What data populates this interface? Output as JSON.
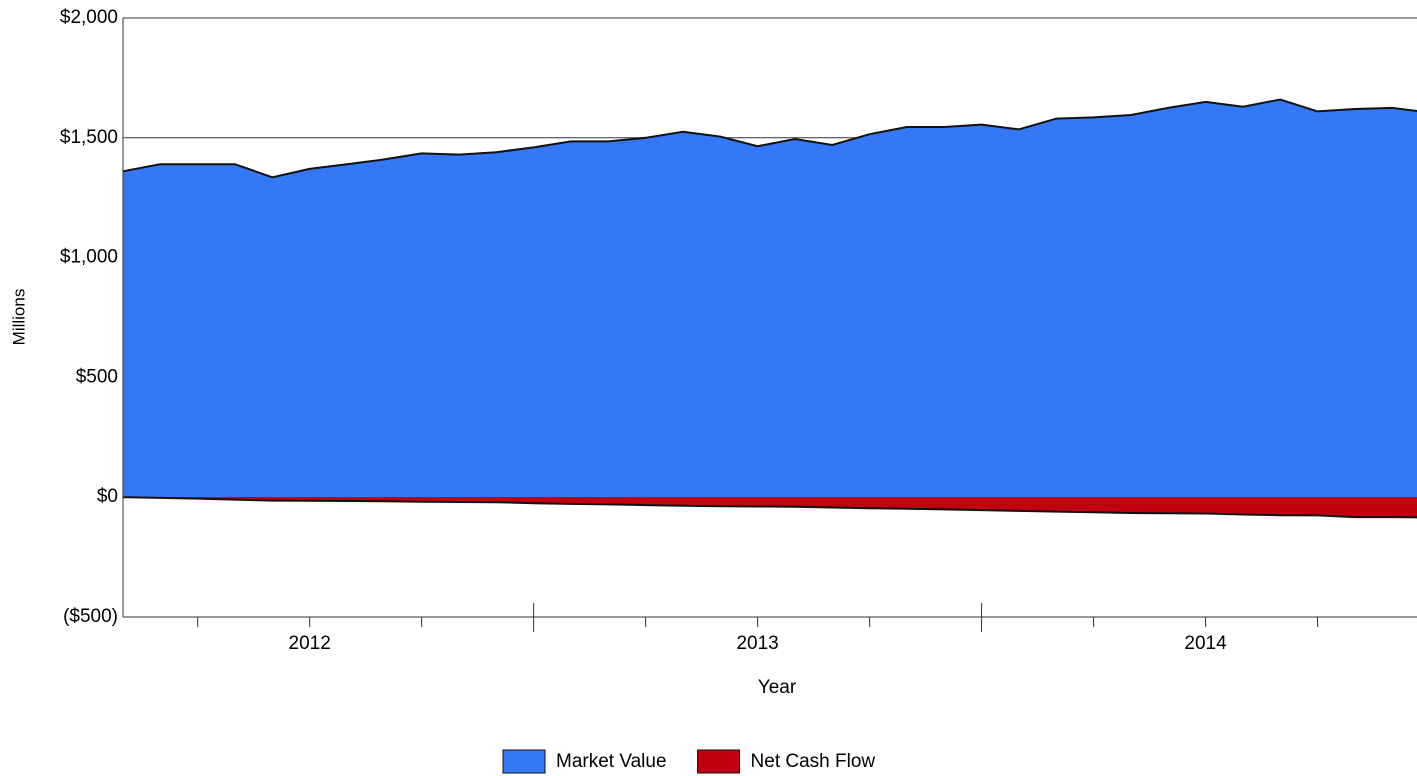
{
  "chart_data": {
    "type": "area",
    "x_label": "Year",
    "y_label": "Millions",
    "categories": [
      null,
      null,
      null,
      null,
      null,
      "2012",
      null,
      null,
      null,
      null,
      null,
      null,
      null,
      null,
      null,
      null,
      null,
      "2013",
      null,
      null,
      null,
      null,
      null,
      null,
      null,
      null,
      null,
      null,
      null,
      "2014",
      null,
      null,
      null,
      null,
      null,
      null
    ],
    "series": [
      {
        "name": "Market Value",
        "color": "#3578f6",
        "values": [
          1360,
          1390,
          1390,
          1390,
          1335,
          1370,
          1390,
          1410,
          1435,
          1430,
          1440,
          1460,
          1485,
          1485,
          1500,
          1525,
          1505,
          1465,
          1495,
          1470,
          1515,
          1545,
          1545,
          1555,
          1535,
          1580,
          1585,
          1595,
          1625,
          1650,
          1630,
          1660,
          1610,
          1620,
          1625,
          1605
        ]
      },
      {
        "name": "Net Cash Flow",
        "color": "#c00010",
        "values": [
          0,
          -3,
          -6,
          -10,
          -14,
          -15,
          -16,
          -17,
          -19,
          -20,
          -21,
          -25,
          -28,
          -30,
          -33,
          -36,
          -38,
          -39,
          -40,
          -43,
          -46,
          -48,
          -51,
          -54,
          -57,
          -60,
          -63,
          -66,
          -67,
          -68,
          -72,
          -75,
          -76,
          -83,
          -83,
          -85
        ]
      }
    ],
    "ylim": [
      -500,
      2000
    ],
    "yticks": [
      {
        "value": -500,
        "label": "($500)"
      },
      {
        "value": 0,
        "label": "$0"
      },
      {
        "value": 500,
        "label": "$500"
      },
      {
        "value": 1000,
        "label": "$1,000"
      },
      {
        "value": 1500,
        "label": "$1,500"
      },
      {
        "value": 2000,
        "label": "$2,000"
      }
    ],
    "grid": true,
    "legend": "bottom"
  }
}
